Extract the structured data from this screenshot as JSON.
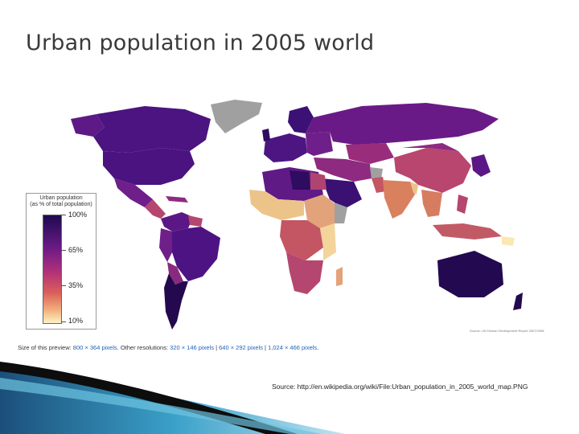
{
  "slide": {
    "title": "Urban population in 2005 world",
    "source": "Source: http://en.wikipedia.org/wiki/File:Urban_population_in_2005_world_map.PNG"
  },
  "map": {
    "credit": "Source: UN Human Development Report 2007/2008",
    "legend": {
      "title_line1": "Urban population",
      "title_line2": "(as % of total population)",
      "labels": [
        "100%",
        "65%",
        "35%",
        "10%"
      ],
      "colors": {
        "high": "#1d0b4f",
        "upper": "#6a1a86",
        "mid": "#b02f7a",
        "low": "#d9605a",
        "lowest": "#fdf2c4",
        "no_data": "#a0a0a0"
      }
    },
    "preview": {
      "prefix": "Size of this preview:",
      "size": "800 × 364 pixels",
      "other": "Other resolutions:",
      "res1": "320 × 146 pixels",
      "res2": "640 × 292 pixels",
      "res3": "1,024 × 466 pixels",
      "sep": "|",
      "end": "."
    }
  }
}
